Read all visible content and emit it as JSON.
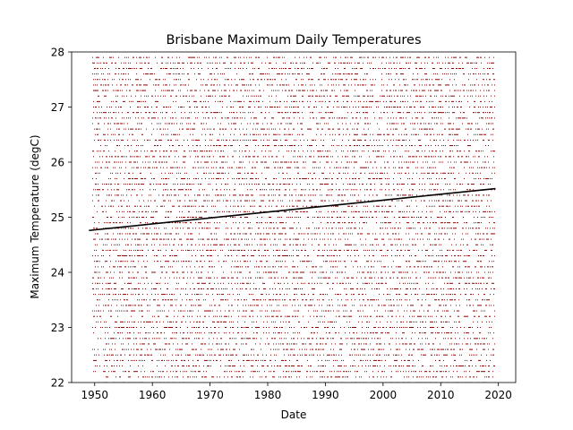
{
  "chart_data": {
    "type": "scatter",
    "title": "Brisbane Maximum Daily Temperatures",
    "xlabel": "Date",
    "ylabel": "Maximum Temperature (degC)",
    "xlim": [
      1946.0,
      2023.0
    ],
    "ylim": [
      22,
      28
    ],
    "xticks": [
      1950,
      1960,
      1970,
      1980,
      1990,
      2000,
      2010,
      2020
    ],
    "yticks": [
      22,
      23,
      24,
      25,
      26,
      27,
      28
    ],
    "grid": false,
    "legend": "none",
    "scatter_x_range": [
      1949.5,
      2019.3
    ],
    "scatter_y_range": [
      22.0,
      27.9
    ],
    "scatter_y_step": 0.1,
    "scatter_color": "#8b0000",
    "trend_line": {
      "x": [
        1949.0,
        2019.5
      ],
      "y": [
        24.76,
        25.52
      ],
      "color": "#000000"
    }
  }
}
